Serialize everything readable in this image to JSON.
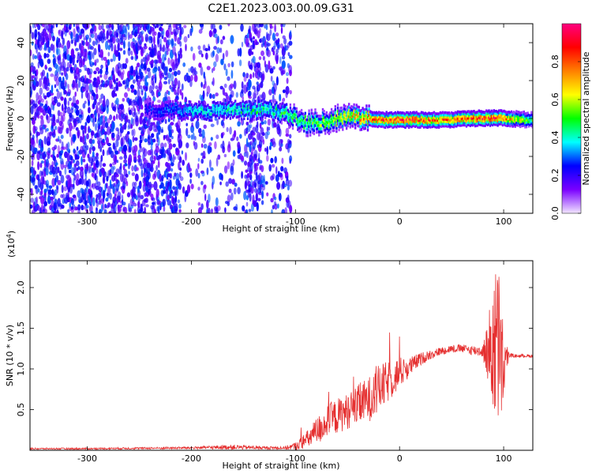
{
  "title": "C2E1.2023.003.00.09.G31",
  "colors": {
    "snr_line": "#e53030",
    "spectrogram_low": "#7b1fe0",
    "spectrogram_mid": "#00e0c0",
    "spectrogram_high": "#ff2020",
    "colorbar_stops": [
      "#f2e6ff",
      "#7a00ff",
      "#0000ff",
      "#00ffff",
      "#00ff00",
      "#ffff00",
      "#ff8000",
      "#ff0000",
      "#ff0080"
    ]
  },
  "chart_data": [
    {
      "type": "heatmap",
      "xlabel": "Height of straight line (km)",
      "ylabel": "Frequency (Hz)",
      "xlim": [
        -355,
        128
      ],
      "ylim": [
        -50,
        50
      ],
      "xticks": [
        -300,
        -200,
        -100,
        0,
        100
      ],
      "yticks": [
        -40,
        -20,
        0,
        20,
        40
      ],
      "colorbar": {
        "label": "Normalized spectral amplitude",
        "range": [
          0.0,
          1.0
        ],
        "ticks": [
          0.0,
          0.2,
          0.4,
          0.6,
          0.8
        ],
        "tick_labels": [
          "0.0",
          "0.2",
          "0.4",
          "0.6",
          "0.8"
        ]
      },
      "ridge_frequency_hz": [
        [
          -125,
          5
        ],
        [
          -110,
          3
        ],
        [
          -90,
          -2
        ],
        [
          -70,
          -1
        ],
        [
          -55,
          2
        ],
        [
          -40,
          1
        ],
        [
          -20,
          0
        ],
        [
          0,
          0
        ],
        [
          40,
          0
        ],
        [
          80,
          1
        ],
        [
          95,
          1
        ],
        [
          128,
          0
        ]
      ],
      "ridge_amplitude": [
        [
          -240,
          0.25
        ],
        [
          -190,
          0.4
        ],
        [
          -125,
          0.45
        ],
        [
          -100,
          0.5
        ],
        [
          -60,
          0.6
        ],
        [
          -30,
          0.8
        ],
        [
          0,
          0.9
        ],
        [
          40,
          0.8
        ],
        [
          90,
          0.9
        ],
        [
          128,
          0.5
        ]
      ],
      "noise_region_km": [
        -355,
        -105
      ],
      "grid": false
    },
    {
      "type": "line",
      "xlabel": "Height of straight line (km)",
      "ylabel": "SNR (10 * v/v)",
      "y_multiplier": "(x10",
      "y_multiplier_exp": "4",
      "y_multiplier_close": ")",
      "xlim": [
        -355,
        128
      ],
      "ylim": [
        0,
        2.33
      ],
      "xticks": [
        -300,
        -200,
        -100,
        0,
        100
      ],
      "yticks": [
        0.5,
        1.0,
        1.5,
        2.0
      ],
      "ytick_labels": [
        "0.5",
        "1.0",
        "1.5",
        "2.0"
      ],
      "grid": false,
      "series": [
        {
          "color": "#e53030",
          "envelope": {
            "x": [
              -355,
              -300,
              -200,
              -160,
              -130,
              -110,
              -100,
              -90,
              -80,
              -70,
              -60,
              -50,
              -40,
              -30,
              -20,
              -10,
              0,
              10,
              20,
              30,
              40,
              50,
              60,
              70,
              80,
              85,
              90,
              95,
              100,
              105,
              110,
              120,
              128
            ],
            "y": [
              0.02,
              0.02,
              0.03,
              0.04,
              0.03,
              0.03,
              0.05,
              0.12,
              0.22,
              0.35,
              0.42,
              0.48,
              0.55,
              0.62,
              0.75,
              0.85,
              0.95,
              1.03,
              1.12,
              1.18,
              1.22,
              1.25,
              1.25,
              1.23,
              1.22,
              1.2,
              1.3,
              1.25,
              1.0,
              1.17,
              1.16,
              1.16,
              1.16
            ],
            "spread": [
              0.01,
              0.01,
              0.015,
              0.03,
              0.02,
              0.02,
              0.05,
              0.1,
              0.18,
              0.2,
              0.22,
              0.22,
              0.25,
              0.28,
              0.3,
              0.25,
              0.2,
              0.12,
              0.08,
              0.06,
              0.05,
              0.05,
              0.05,
              0.06,
              0.08,
              0.4,
              0.9,
              1.1,
              0.5,
              0.03,
              0.02,
              0.02,
              0.02
            ]
          }
        }
      ]
    }
  ]
}
